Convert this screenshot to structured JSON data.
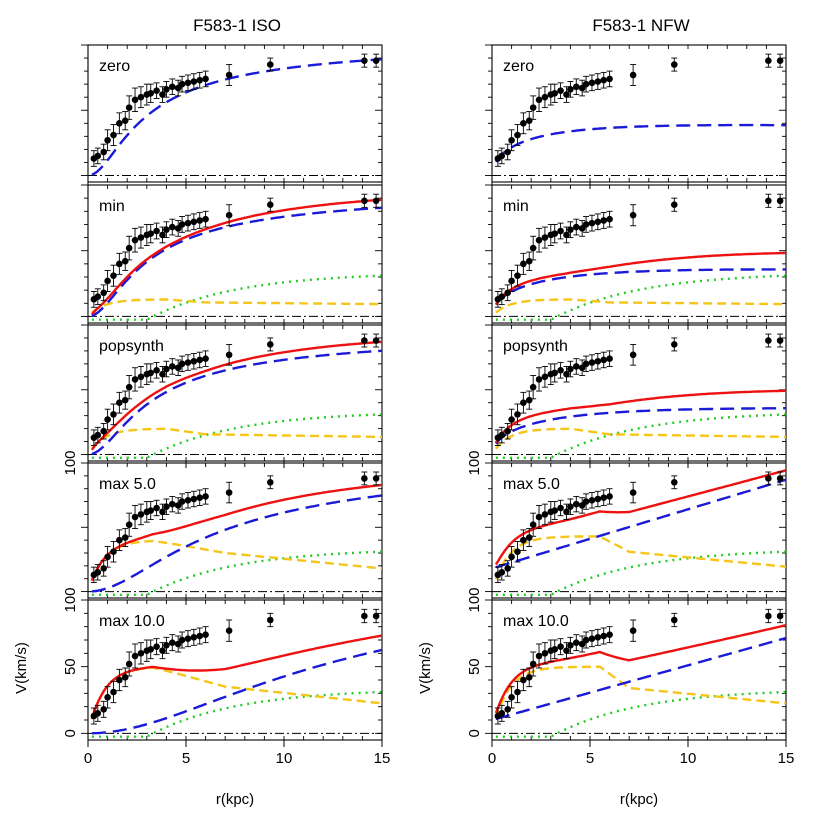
{
  "figure": {
    "columns": [
      {
        "title": "F583-1 ISO"
      },
      {
        "title": "F583-1 NFW"
      }
    ],
    "panel_labels": [
      "zero",
      "min",
      "popsynth",
      "max 5.0",
      "max 10.0"
    ],
    "xlabel": "r(kpc)",
    "ylabel": "V(km/s)",
    "x_ticks": [
      "0",
      "5",
      "10",
      "15"
    ],
    "y_ticks": [
      "0",
      "50",
      "100"
    ],
    "y_top_tick": "100"
  },
  "colors": {
    "data": "#000000",
    "total": "#ee1111",
    "halo": "#1a1ad8",
    "disk": "#f5c518",
    "gas": "#22cc22",
    "zero_line": "#000000"
  },
  "chart_data": [
    {
      "type": "scatter",
      "title": "F583-1 ISO",
      "xlabel": "r(kpc)",
      "ylabel": "V(km/s)",
      "xlim": [
        0,
        15
      ],
      "ylim": [
        -5,
        100
      ],
      "panels": [
        "zero",
        "min",
        "popsynth",
        "max 5.0",
        "max 10.0"
      ],
      "observed": {
        "r": [
          0.3,
          0.5,
          0.8,
          1.0,
          1.3,
          1.6,
          1.9,
          2.1,
          2.4,
          2.7,
          3.0,
          3.2,
          3.5,
          3.8,
          4.0,
          4.3,
          4.6,
          4.8,
          5.1,
          5.4,
          5.7,
          6.0,
          7.2,
          9.3,
          14.1,
          14.7
        ],
        "v": [
          13,
          15,
          18,
          27,
          31,
          40,
          42,
          52,
          58,
          60,
          62,
          63,
          65,
          62,
          66,
          68,
          67,
          70,
          71,
          72,
          73,
          74,
          77,
          85,
          88,
          88
        ],
        "err": [
          6,
          6,
          6,
          8,
          8,
          8,
          7,
          9,
          9,
          8,
          8,
          7,
          6,
          6,
          6,
          6,
          6,
          6,
          6,
          6,
          6,
          6,
          8,
          5,
          5,
          5
        ]
      }
    },
    {
      "type": "scatter",
      "title": "F583-1 NFW",
      "xlabel": "r(kpc)",
      "ylabel": "V(km/s)",
      "xlim": [
        0,
        15
      ],
      "ylim": [
        -5,
        100
      ],
      "panels": [
        "zero",
        "min",
        "popsynth",
        "max 5.0",
        "max 10.0"
      ],
      "observed": {
        "r": [
          0.3,
          0.5,
          0.8,
          1.0,
          1.3,
          1.6,
          1.9,
          2.1,
          2.4,
          2.7,
          3.0,
          3.2,
          3.5,
          3.8,
          4.0,
          4.3,
          4.6,
          4.8,
          5.1,
          5.4,
          5.7,
          6.0,
          7.2,
          9.3,
          14.1,
          14.7
        ],
        "v": [
          13,
          15,
          18,
          27,
          31,
          40,
          42,
          52,
          58,
          60,
          62,
          63,
          65,
          62,
          66,
          68,
          67,
          70,
          71,
          72,
          73,
          74,
          77,
          85,
          88,
          88
        ],
        "err": [
          6,
          6,
          6,
          8,
          8,
          8,
          7,
          9,
          9,
          8,
          8,
          7,
          6,
          6,
          6,
          6,
          6,
          6,
          6,
          6,
          6,
          6,
          8,
          5,
          5,
          5
        ]
      }
    }
  ]
}
